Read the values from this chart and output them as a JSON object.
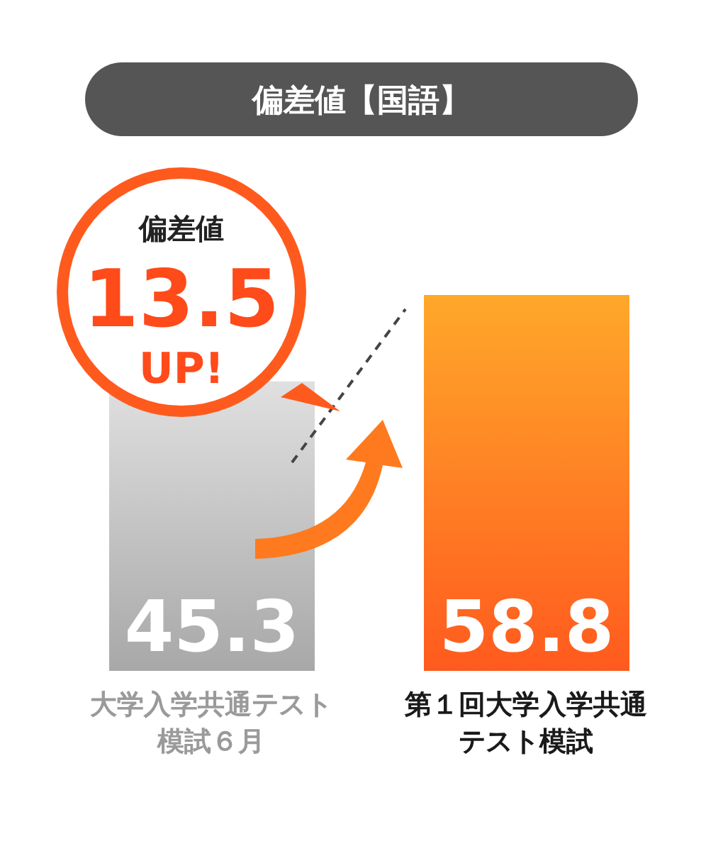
{
  "chart_data": {
    "type": "bar",
    "title": "偏差値【国語】",
    "categories": [
      "大学入学共通テスト模試６月",
      "第１回大学入学共通テスト模試"
    ],
    "values": [
      45.3,
      58.8
    ],
    "colors": [
      "#a8a8a8",
      "#ff5a1e"
    ],
    "data_labels": true,
    "annotations": [
      "偏差値",
      "13.5",
      "UP!"
    ]
  }
}
